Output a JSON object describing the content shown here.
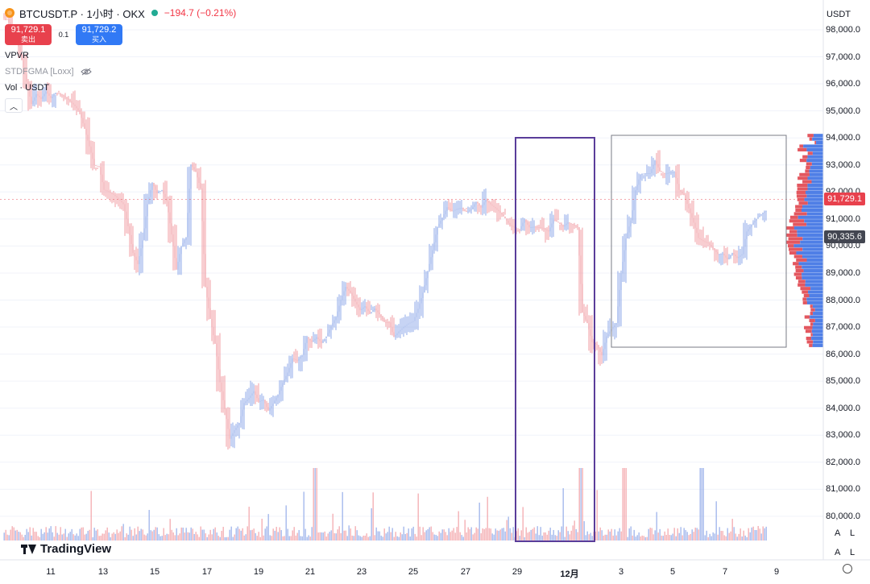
{
  "symbol": {
    "title": "BTCUSDT.P · 1小时 · OKX",
    "change": "−194.7 (−0.21%)",
    "sell_price": "91,729.1",
    "sell_label": "卖出",
    "spread": "0.1",
    "buy_price": "91,729.2",
    "buy_label": "买入"
  },
  "indicators": [
    {
      "label": "VPVR"
    },
    {
      "label": "STDFGMA [Loxx]"
    },
    {
      "label": "Vol · USDT"
    }
  ],
  "price_axis": {
    "currency": "USDT",
    "ticks": [
      "98,000.0",
      "97,000.0",
      "96,000.0",
      "95,000.0",
      "94,000.0",
      "93,000.0",
      "92,000.0",
      "91,000.0",
      "90,000.0",
      "89,000.0",
      "88,000.0",
      "87,000.0",
      "86,000.0",
      "85,000.0",
      "84,000.0",
      "83,000.0",
      "82,000.0",
      "81,000.0",
      "80,000.0"
    ],
    "last_price": "91,729.1",
    "poc_price": "90,335.6"
  },
  "time_axis": {
    "labels": [
      "11",
      "13",
      "15",
      "17",
      "19",
      "21",
      "23",
      "25",
      "27",
      "29",
      "12月",
      "3",
      "5",
      "7",
      "9"
    ]
  },
  "brand": "TradingView",
  "scale_buttons": {
    "auto": "A",
    "log": "L"
  },
  "colors": {
    "up": "#8fa9e8",
    "down": "#f19ca3",
    "vp_up": "#4f7fe6",
    "vp_down": "#e3575f",
    "box": "#5a3d9a",
    "last": "#e8414d"
  },
  "chart_data": {
    "type": "candlestick",
    "symbol": "BTCUSDT.P",
    "interval": "1小时",
    "exchange": "OKX",
    "y_range": [
      79500,
      98500
    ],
    "close_path": [
      [
        0,
        98400
      ],
      [
        2,
        97600
      ],
      [
        5,
        95500
      ],
      [
        10,
        95700
      ],
      [
        15,
        94800
      ],
      [
        20,
        92200
      ],
      [
        24,
        91400
      ],
      [
        27,
        89200
      ],
      [
        30,
        92500
      ],
      [
        33,
        91500
      ],
      [
        35,
        89300
      ],
      [
        37,
        90500
      ],
      [
        38,
        93000
      ],
      [
        40,
        92000
      ],
      [
        41,
        88500
      ],
      [
        42,
        87500
      ],
      [
        46,
        82800
      ],
      [
        50,
        84600
      ],
      [
        54,
        84000
      ],
      [
        56,
        84500
      ],
      [
        60,
        86000
      ],
      [
        64,
        86800
      ],
      [
        66,
        86500
      ],
      [
        70,
        88600
      ],
      [
        72,
        88000
      ],
      [
        74,
        87600
      ],
      [
        78,
        87300
      ],
      [
        80,
        86800
      ],
      [
        84,
        87000
      ],
      [
        86,
        88200
      ],
      [
        88,
        90000
      ],
      [
        90,
        91100
      ],
      [
        92,
        91400
      ],
      [
        95,
        91200
      ],
      [
        98,
        91600
      ],
      [
        101,
        91500
      ],
      [
        104,
        90900
      ],
      [
        108,
        90700
      ],
      [
        112,
        90700
      ],
      [
        116,
        91000
      ],
      [
        118,
        90800
      ],
      [
        119,
        87500
      ],
      [
        121,
        86500
      ],
      [
        123,
        85800
      ],
      [
        124,
        86800
      ],
      [
        126,
        87000
      ],
      [
        128,
        90500
      ],
      [
        131,
        92500
      ],
      [
        134,
        93000
      ],
      [
        138,
        92500
      ],
      [
        140,
        92000
      ],
      [
        142,
        91000
      ],
      [
        144,
        90000
      ],
      [
        147,
        89600
      ],
      [
        150,
        89600
      ],
      [
        152,
        89700
      ],
      [
        153,
        90500
      ],
      [
        157,
        91500
      ]
    ],
    "volume_profile": {
      "range": [
        86250,
        94150
      ],
      "poc": 90335.6
    },
    "annotations": [
      {
        "type": "rectangle",
        "from_index": 106,
        "to_index": 123,
        "price_top": 94000,
        "price_bottom": 79300
      },
      {
        "type": "rectangle",
        "from_index": 128,
        "to_index": 159,
        "price_top": 94150,
        "price_bottom": 86250
      }
    ]
  }
}
